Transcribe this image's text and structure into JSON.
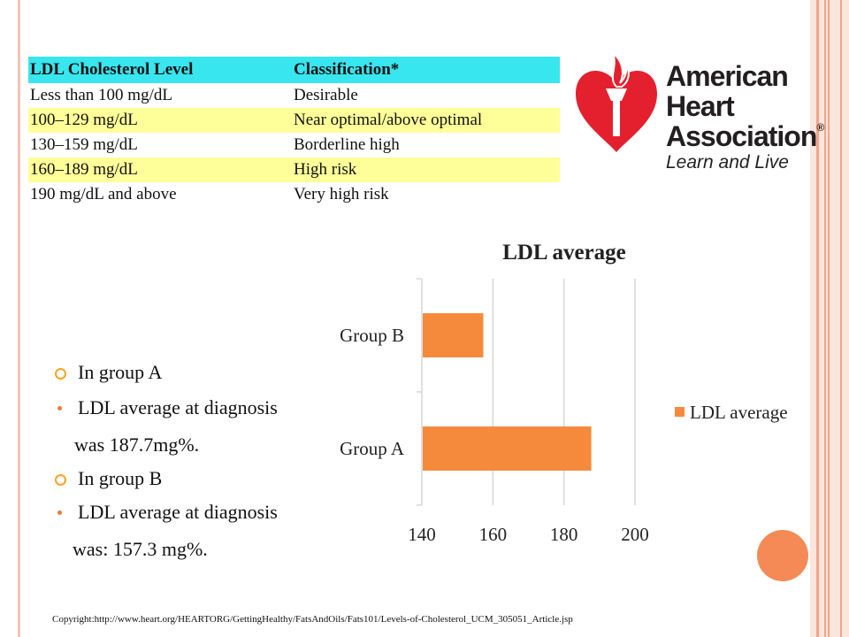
{
  "table": {
    "headers": [
      "LDL Cholesterol Level",
      "Classification*"
    ],
    "rows": [
      [
        "Less than 100 mg/dL",
        "Desirable"
      ],
      [
        "100–129 mg/dL",
        "Near optimal/above optimal"
      ],
      [
        "130–159 mg/dL",
        "Borderline high"
      ],
      [
        "160–189 mg/dL",
        "High risk"
      ],
      [
        "190 mg/dL and above",
        "Very high risk"
      ]
    ]
  },
  "logo": {
    "line1": "American",
    "line2": "Heart",
    "line3": "Association",
    "registered": "®",
    "tagline": "Learn and Live"
  },
  "bullets": [
    "In group A",
    "LDL average at diagnosis",
    "was 187.7mg%.",
    "In group B",
    "LDL average at diagnosis",
    "was: 157.3 mg%."
  ],
  "copyright": "Copyright:http://www.heart.org/HEARTORG/GettingHealthy/FatsAndOils/Fats101/Levels-of-Cholesterol_UCM_305051_Article.jsp",
  "colors": {
    "accent": "#f58a3c",
    "table_header": "#38e6ef",
    "table_alt": "#ffff99",
    "aha_red": "#e4202e"
  },
  "chart_data": {
    "type": "bar",
    "orientation": "horizontal",
    "title": "LDL average",
    "categories": [
      "Group B",
      "Group A"
    ],
    "series": [
      {
        "name": "LDL average",
        "values": [
          157.3,
          187.7
        ]
      }
    ],
    "xlim": [
      140,
      200
    ],
    "xticks": [
      140,
      160,
      180,
      200
    ],
    "grid": true,
    "legend": "right"
  }
}
